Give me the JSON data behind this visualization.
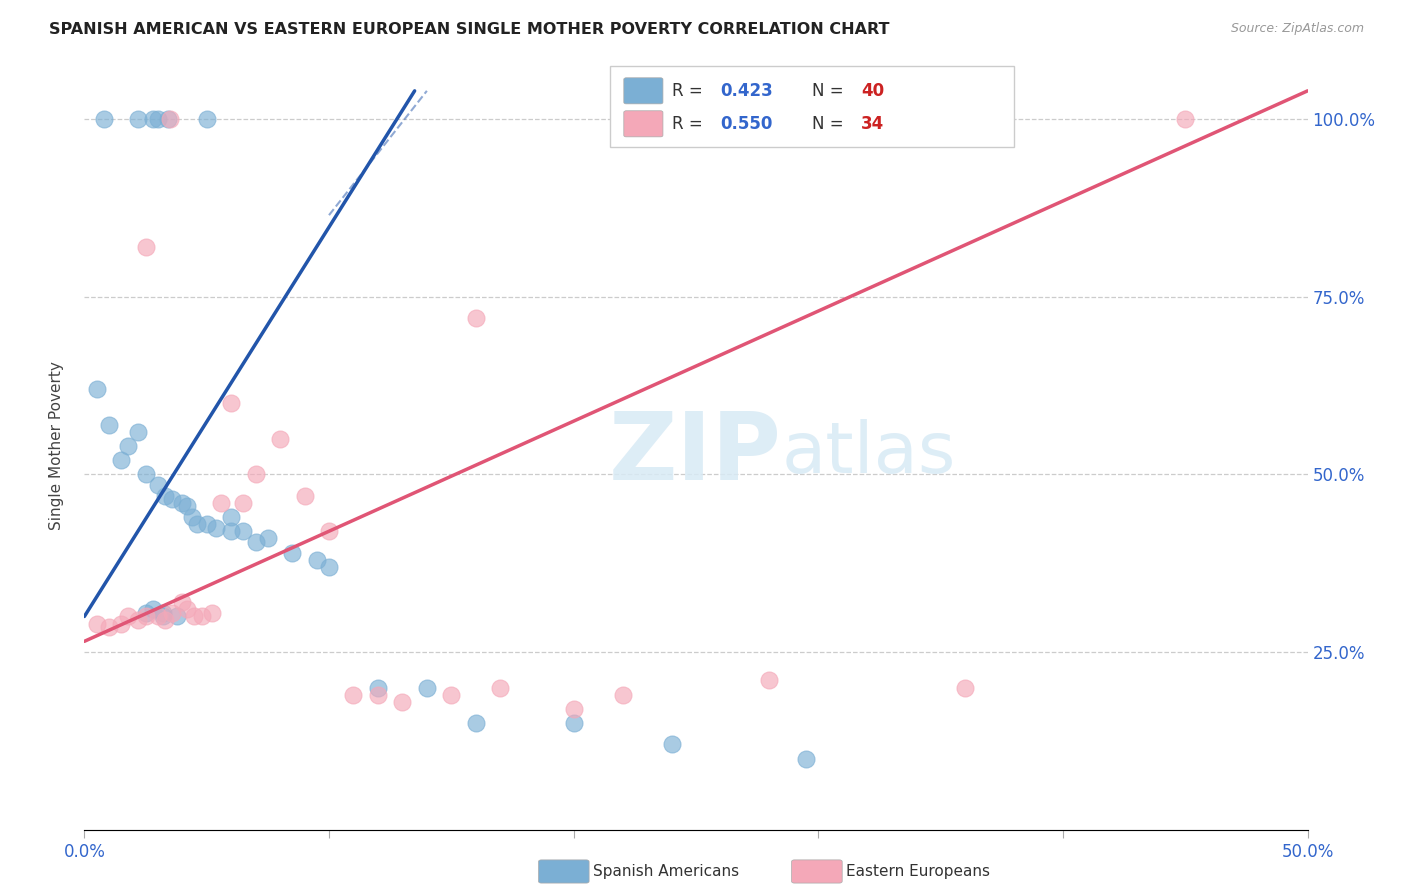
{
  "title": "SPANISH AMERICAN VS EASTERN EUROPEAN SINGLE MOTHER POVERTY CORRELATION CHART",
  "source": "Source: ZipAtlas.com",
  "ylabel": "Single Mother Poverty",
  "xlim": [
    0.0,
    0.5
  ],
  "ylim": [
    0.0,
    1.08
  ],
  "watermark_zip": "ZIP",
  "watermark_atlas": "atlas",
  "blue_R": 0.423,
  "blue_N": 40,
  "pink_R": 0.55,
  "pink_N": 34,
  "blue_color": "#7BAFD4",
  "pink_color": "#F4A8B8",
  "blue_line_color": "#2255AA",
  "pink_line_color": "#E05575",
  "legend_R_color": "#3366CC",
  "legend_N_color": "#CC2222",
  "blue_line_x": [
    0.0,
    0.135
  ],
  "blue_line_y": [
    0.3,
    1.04
  ],
  "pink_line_x": [
    0.0,
    0.5
  ],
  "pink_line_y": [
    0.265,
    1.04
  ],
  "blue_scatter_x": [
    0.008,
    0.022,
    0.028,
    0.03,
    0.034,
    0.05,
    0.028,
    0.032,
    0.005,
    0.01,
    0.015,
    0.018,
    0.022,
    0.025,
    0.03,
    0.033,
    0.036,
    0.04,
    0.042,
    0.044,
    0.046,
    0.05,
    0.054,
    0.06,
    0.065,
    0.07,
    0.075,
    0.085,
    0.095,
    0.1,
    0.12,
    0.14,
    0.16,
    0.2,
    0.24,
    0.295,
    0.025,
    0.032,
    0.038,
    0.06
  ],
  "blue_scatter_y": [
    1.0,
    1.0,
    1.0,
    1.0,
    1.0,
    1.0,
    0.31,
    0.305,
    0.62,
    0.57,
    0.52,
    0.54,
    0.56,
    0.5,
    0.485,
    0.47,
    0.465,
    0.46,
    0.455,
    0.44,
    0.43,
    0.43,
    0.425,
    0.42,
    0.42,
    0.405,
    0.41,
    0.39,
    0.38,
    0.37,
    0.2,
    0.2,
    0.15,
    0.15,
    0.12,
    0.1,
    0.305,
    0.3,
    0.3,
    0.44
  ],
  "pink_scatter_x": [
    0.035,
    0.16,
    0.025,
    0.005,
    0.01,
    0.015,
    0.018,
    0.022,
    0.025,
    0.03,
    0.033,
    0.036,
    0.04,
    0.042,
    0.045,
    0.048,
    0.052,
    0.056,
    0.06,
    0.065,
    0.07,
    0.08,
    0.09,
    0.1,
    0.11,
    0.12,
    0.13,
    0.15,
    0.17,
    0.2,
    0.22,
    0.28,
    0.36,
    0.45
  ],
  "pink_scatter_y": [
    1.0,
    0.72,
    0.82,
    0.29,
    0.285,
    0.29,
    0.3,
    0.295,
    0.3,
    0.3,
    0.295,
    0.305,
    0.32,
    0.31,
    0.3,
    0.3,
    0.305,
    0.46,
    0.6,
    0.46,
    0.5,
    0.55,
    0.47,
    0.42,
    0.19,
    0.19,
    0.18,
    0.19,
    0.2,
    0.17,
    0.19,
    0.21,
    0.2,
    1.0
  ]
}
